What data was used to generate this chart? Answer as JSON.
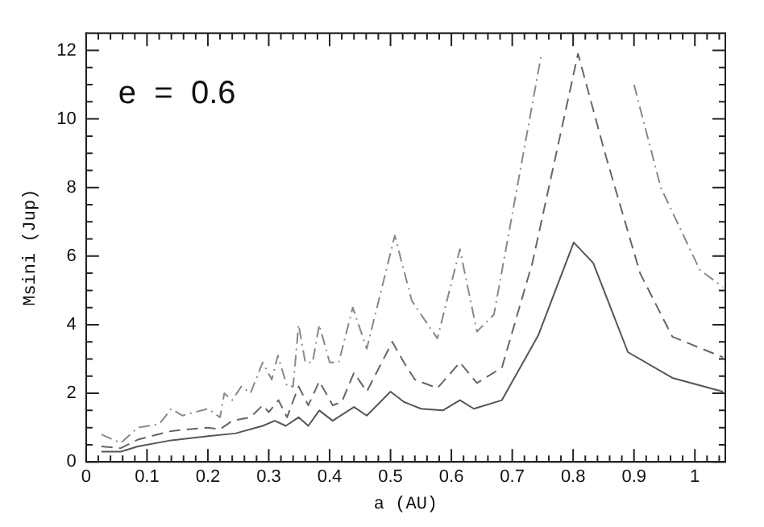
{
  "chart_data": {
    "type": "line",
    "xlabel": "a (AU)",
    "ylabel": "Msini (Jup)",
    "annotations": [
      "e  =  0.6"
    ],
    "grid": false,
    "legend": false,
    "marker": "none",
    "xlim": [
      0,
      1.05
    ],
    "ylim": [
      0,
      12.5
    ],
    "xticks": [
      0,
      {
        "value": 0.02,
        "label": null
      },
      {
        "value": 0.04,
        "label": null
      },
      {
        "value": 0.06,
        "label": null
      },
      {
        "value": 0.08,
        "label": null
      },
      0.1,
      {
        "value": 0.12,
        "label": null
      },
      {
        "value": 0.14,
        "label": null
      },
      {
        "value": 0.16,
        "label": null
      },
      {
        "value": 0.18,
        "label": null
      },
      0.2,
      {
        "value": 0.22,
        "label": null
      },
      {
        "value": 0.24,
        "label": null
      },
      {
        "value": 0.26,
        "label": null
      },
      {
        "value": 0.28,
        "label": null
      },
      0.3,
      {
        "value": 0.32,
        "label": null
      },
      {
        "value": 0.34,
        "label": null
      },
      {
        "value": 0.36,
        "label": null
      },
      {
        "value": 0.38,
        "label": null
      },
      0.4,
      {
        "value": 0.42,
        "label": null
      },
      {
        "value": 0.44,
        "label": null
      },
      {
        "value": 0.46,
        "label": null
      },
      {
        "value": 0.48,
        "label": null
      },
      0.5,
      {
        "value": 0.52,
        "label": null
      },
      {
        "value": 0.54,
        "label": null
      },
      {
        "value": 0.56,
        "label": null
      },
      {
        "value": 0.58,
        "label": null
      },
      0.6,
      {
        "value": 0.62,
        "label": null
      },
      {
        "value": 0.64,
        "label": null
      },
      {
        "value": 0.66,
        "label": null
      },
      {
        "value": 0.68,
        "label": null
      },
      0.7,
      {
        "value": 0.72,
        "label": null
      },
      {
        "value": 0.74,
        "label": null
      },
      {
        "value": 0.76,
        "label": null
      },
      {
        "value": 0.78,
        "label": null
      },
      0.8,
      {
        "value": 0.82,
        "label": null
      },
      {
        "value": 0.84,
        "label": null
      },
      {
        "value": 0.86,
        "label": null
      },
      {
        "value": 0.88,
        "label": null
      },
      0.9,
      {
        "value": 0.92,
        "label": null
      },
      {
        "value": 0.94,
        "label": null
      },
      {
        "value": 0.96,
        "label": null
      },
      {
        "value": 0.98,
        "label": null
      },
      1,
      {
        "value": 1.02,
        "label": null
      },
      {
        "value": 1.04,
        "label": null
      }
    ],
    "yticks": [
      0,
      {
        "value": 0.5,
        "label": null
      },
      {
        "value": 1,
        "label": null
      },
      {
        "value": 1.5,
        "label": null
      },
      2,
      {
        "value": 2.5,
        "label": null
      },
      {
        "value": 3,
        "label": null
      },
      {
        "value": 3.5,
        "label": null
      },
      4,
      {
        "value": 4.5,
        "label": null
      },
      {
        "value": 5,
        "label": null
      },
      {
        "value": 5.5,
        "label": null
      },
      6,
      {
        "value": 6.5,
        "label": null
      },
      {
        "value": 7,
        "label": null
      },
      {
        "value": 7.5,
        "label": null
      },
      8,
      {
        "value": 8.5,
        "label": null
      },
      {
        "value": 9,
        "label": null
      },
      {
        "value": 9.5,
        "label": null
      },
      10,
      {
        "value": 10.5,
        "label": null
      },
      {
        "value": 11,
        "label": null
      },
      {
        "value": 11.5,
        "label": null
      },
      12
    ],
    "series": [
      {
        "color": "#555555",
        "line_style": "solid",
        "x": [
          0.025,
          0.057,
          0.085,
          0.14,
          0.2,
          0.245,
          0.29,
          0.31,
          0.328,
          0.349,
          0.365,
          0.383,
          0.405,
          0.44,
          0.461,
          0.5,
          0.522,
          0.55,
          0.586,
          0.614,
          0.637,
          0.683,
          0.743,
          0.801,
          0.833,
          0.89,
          0.963,
          1.046
        ],
        "values": [
          0.3,
          0.3,
          0.45,
          0.63,
          0.75,
          0.83,
          1.05,
          1.2,
          1.05,
          1.3,
          1.05,
          1.5,
          1.2,
          1.6,
          1.35,
          2.05,
          1.75,
          1.55,
          1.5,
          1.8,
          1.55,
          1.8,
          3.7,
          6.4,
          5.8,
          3.2,
          2.45,
          2.05
        ]
      },
      {
        "color": "#666666",
        "line_style": "dashed",
        "x": [
          0.025,
          0.057,
          0.085,
          0.14,
          0.2,
          0.22,
          0.24,
          0.27,
          0.29,
          0.3,
          0.316,
          0.33,
          0.349,
          0.365,
          0.383,
          0.405,
          0.42,
          0.44,
          0.461,
          0.503,
          0.522,
          0.54,
          0.577,
          0.614,
          0.642,
          0.683,
          0.733,
          0.808,
          0.854,
          0.91,
          0.963,
          1.046
        ],
        "values": [
          0.45,
          0.4,
          0.65,
          0.9,
          1.0,
          0.95,
          1.2,
          1.3,
          1.65,
          1.45,
          1.8,
          1.3,
          2.2,
          1.65,
          2.35,
          1.65,
          1.75,
          2.6,
          2.05,
          3.5,
          2.9,
          2.4,
          2.15,
          2.9,
          2.3,
          2.75,
          5.8,
          11.9,
          8.9,
          5.5,
          3.65,
          3.05
        ]
      },
      {
        "color": "#888888",
        "line_style": "dashdot",
        "x": [
          0.025,
          0.057,
          0.085,
          0.12,
          0.14,
          0.158,
          0.2,
          0.22,
          0.227,
          0.24,
          0.255,
          0.27,
          0.29,
          0.305,
          0.315,
          0.33,
          0.34,
          0.349,
          0.36,
          0.372,
          0.383,
          0.4,
          0.415,
          0.438,
          0.461,
          0.507,
          0.535,
          0.55,
          0.577,
          0.614,
          0.642,
          0.67,
          0.747,
          0.8,
          0.9,
          0.944,
          1.008,
          1.046
        ],
        "values": [
          0.8,
          0.55,
          1.0,
          1.1,
          1.55,
          1.35,
          1.55,
          1.3,
          2.0,
          1.8,
          2.2,
          2.0,
          2.9,
          2.4,
          3.1,
          2.2,
          2.2,
          4.0,
          2.9,
          2.9,
          4.0,
          2.9,
          2.9,
          4.5,
          3.3,
          6.6,
          4.7,
          4.3,
          3.6,
          6.2,
          3.8,
          4.3,
          11.8,
          null,
          11.0,
          8.0,
          5.6,
          5.1
        ]
      }
    ]
  }
}
